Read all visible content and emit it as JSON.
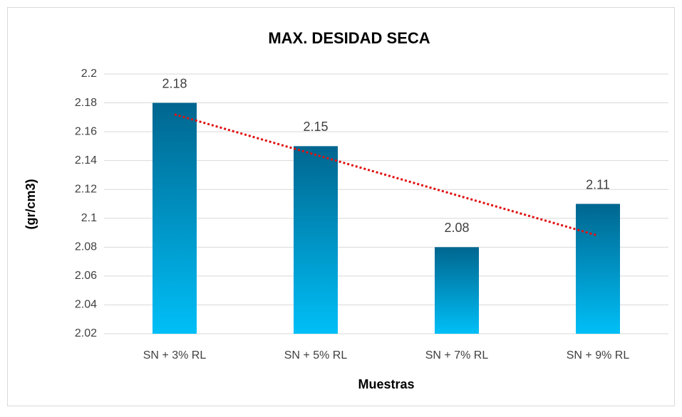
{
  "chart_data": {
    "type": "bar",
    "title": "MAX. DESIDAD SECA",
    "x_label": "Muestras",
    "y_label": "(gr/cm3)",
    "categories": [
      "SN + 3% RL",
      "SN + 5% RL",
      "SN + 7% RL",
      "SN + 9% RL"
    ],
    "values": [
      2.18,
      2.15,
      2.08,
      2.11
    ],
    "gradient": [
      "#00668f",
      "#00bff7"
    ],
    "ylim": [
      2.02,
      2.2
    ],
    "yticks": [
      2.02,
      2.04,
      2.06,
      2.08,
      2.1,
      2.12,
      2.14,
      2.16,
      2.18,
      2.2
    ],
    "grid": true,
    "data_labels": true,
    "trendline": {
      "kind": "linear",
      "color": "#e01010",
      "style": "dotted"
    }
  }
}
